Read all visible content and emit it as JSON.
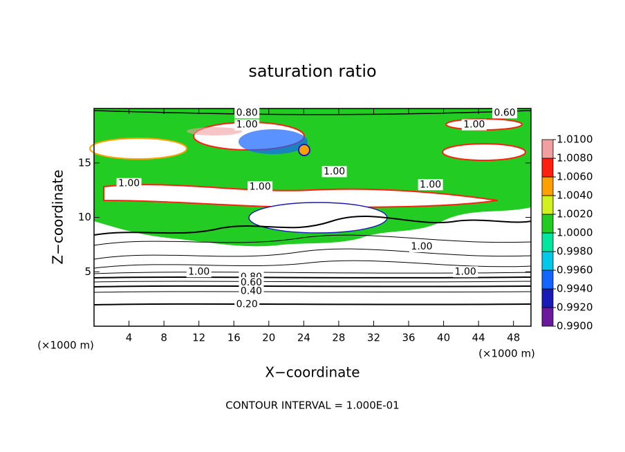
{
  "chart_data": {
    "type": "contour",
    "title": "saturation ratio",
    "xlabel": "X−coordinate",
    "ylabel": "Z−coordinate",
    "x_unit_labels": [
      "(×1000 m)",
      "(×1000 m)"
    ],
    "footer": "CONTOUR INTERVAL = 1.000E-01",
    "xlim": [
      0,
      50
    ],
    "xticks": [
      4,
      8,
      12,
      16,
      20,
      24,
      28,
      32,
      36,
      40,
      44,
      48
    ],
    "ylim": [
      0,
      20
    ],
    "yticks": [
      5,
      10,
      15
    ],
    "colorbar": {
      "ticks": [
        {
          "value": 0.99,
          "label": "0.9900"
        },
        {
          "value": 0.992,
          "label": "0.9920"
        },
        {
          "value": 0.994,
          "label": "0.9940"
        },
        {
          "value": 0.996,
          "label": "0.9960"
        },
        {
          "value": 0.998,
          "label": "0.9980"
        },
        {
          "value": 1.0,
          "label": "1.0000"
        },
        {
          "value": 1.002,
          "label": "1.0020"
        },
        {
          "value": 1.004,
          "label": "1.0040"
        },
        {
          "value": 1.006,
          "label": "1.0060"
        },
        {
          "value": 1.008,
          "label": "1.0080"
        },
        {
          "value": 1.01,
          "label": "1.0100"
        }
      ],
      "colors": [
        "#6a1a9a",
        "#1a1ab4",
        "#1464ff",
        "#00c8e6",
        "#00e6a0",
        "#22cc22",
        "#d2f020",
        "#ffa000",
        "#ff2010",
        "#f0a0a0"
      ]
    },
    "contour_labels": [
      {
        "text": "0.80",
        "x": 17.5,
        "y": 19.6
      },
      {
        "text": "0.60",
        "x": 47,
        "y": 19.6
      },
      {
        "text": "1.00",
        "x": 17.5,
        "y": 18.5
      },
      {
        "text": "1.00",
        "x": 43.5,
        "y": 18.5
      },
      {
        "text": "1.00",
        "x": 27.5,
        "y": 14.2
      },
      {
        "text": "1.00",
        "x": 4,
        "y": 13.1
      },
      {
        "text": "1.00",
        "x": 19,
        "y": 12.8
      },
      {
        "text": "1.00",
        "x": 38.5,
        "y": 13.0
      },
      {
        "text": "1.00",
        "x": 37.5,
        "y": 7.3
      },
      {
        "text": "1.00",
        "x": 12,
        "y": 5.0
      },
      {
        "text": "1.00",
        "x": 42.5,
        "y": 5.0
      },
      {
        "text": "0.80",
        "x": 18,
        "y": 4.5
      },
      {
        "text": "0.60",
        "x": 18,
        "y": 4.0
      },
      {
        "text": "0.40",
        "x": 18,
        "y": 3.2
      },
      {
        "text": "0.20",
        "x": 17.5,
        "y": 2.0
      }
    ]
  }
}
